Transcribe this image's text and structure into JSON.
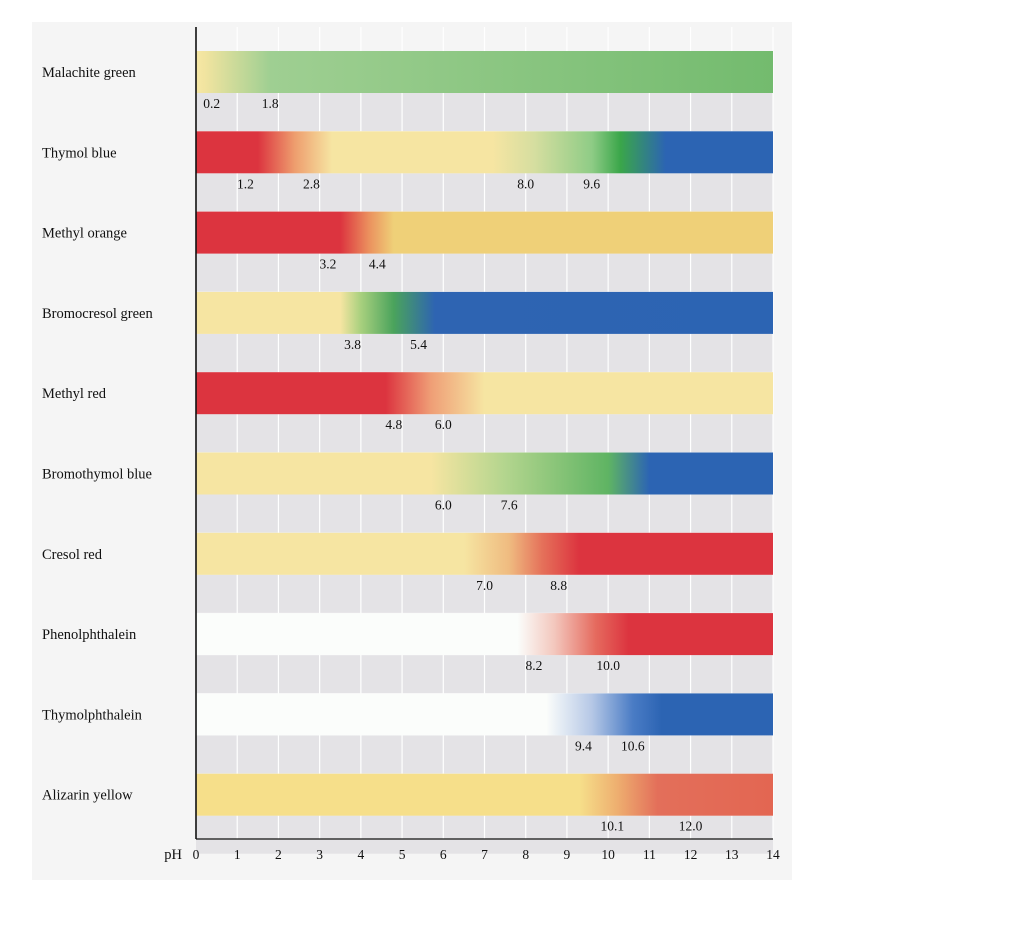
{
  "chart_data": {
    "type": "bar",
    "title": "",
    "xlabel": "pH",
    "ylabel": "",
    "xlim": [
      0,
      14
    ],
    "x_ticks": [
      "0",
      "1",
      "2",
      "3",
      "4",
      "5",
      "6",
      "7",
      "8",
      "9",
      "10",
      "11",
      "12",
      "13",
      "14"
    ],
    "grid": true,
    "indicators": [
      {
        "name": "Malachite green",
        "range_low": 0.2,
        "range_high": 1.8,
        "labels": [
          "0.2",
          "1.8"
        ],
        "stops": [
          {
            "ph": 0,
            "color": "#f5e7a4"
          },
          {
            "ph": 0.2,
            "color": "#f2e4a0"
          },
          {
            "ph": 1.8,
            "color": "#9fcf92"
          },
          {
            "ph": 14,
            "color": "#73bb6e"
          }
        ]
      },
      {
        "name": "Thymol blue",
        "range_low": 1.2,
        "range_high": 2.8,
        "range2_low": 8.0,
        "range2_high": 9.6,
        "labels": [
          "1.2",
          "2.8",
          "8.0",
          "9.6"
        ],
        "stops": [
          {
            "ph": 0,
            "color": "#dc343f"
          },
          {
            "ph": 1.5,
            "color": "#dc343f"
          },
          {
            "ph": 2.4,
            "color": "#ee9e6e"
          },
          {
            "ph": 3.3,
            "color": "#f6e5a2"
          },
          {
            "ph": 7.2,
            "color": "#f6e5a2"
          },
          {
            "ph": 8.2,
            "color": "#d6dea0"
          },
          {
            "ph": 9.6,
            "color": "#8fcc86"
          },
          {
            "ph": 10.3,
            "color": "#3aa64a"
          },
          {
            "ph": 11.4,
            "color": "#2c64b3"
          },
          {
            "ph": 14,
            "color": "#2c64b3"
          }
        ]
      },
      {
        "name": "Methyl orange",
        "range_low": 3.2,
        "range_high": 4.4,
        "labels": [
          "3.2",
          "4.4"
        ],
        "stops": [
          {
            "ph": 0,
            "color": "#dc343f"
          },
          {
            "ph": 3.5,
            "color": "#dc343f"
          },
          {
            "ph": 4.2,
            "color": "#eb915e"
          },
          {
            "ph": 4.8,
            "color": "#efd078"
          },
          {
            "ph": 14,
            "color": "#efd078"
          }
        ]
      },
      {
        "name": "Bromocresol green",
        "range_low": 3.8,
        "range_high": 5.4,
        "labels": [
          "3.8",
          "5.4"
        ],
        "stops": [
          {
            "ph": 0,
            "color": "#f6e5a2"
          },
          {
            "ph": 3.5,
            "color": "#f6e5a2"
          },
          {
            "ph": 4.0,
            "color": "#a8d07e"
          },
          {
            "ph": 4.8,
            "color": "#4aa35c"
          },
          {
            "ph": 5.8,
            "color": "#2e64b2"
          },
          {
            "ph": 14,
            "color": "#2c64b3"
          }
        ]
      },
      {
        "name": "Methyl red",
        "range_low": 4.8,
        "range_high": 6.0,
        "labels": [
          "4.8",
          "6.0"
        ],
        "stops": [
          {
            "ph": 0,
            "color": "#dc343f"
          },
          {
            "ph": 4.6,
            "color": "#dc343f"
          },
          {
            "ph": 5.7,
            "color": "#ef9e76"
          },
          {
            "ph": 7.0,
            "color": "#f6e5a2"
          },
          {
            "ph": 14,
            "color": "#f6e5a2"
          }
        ]
      },
      {
        "name": "Bromothymol blue",
        "range_low": 6.0,
        "range_high": 7.6,
        "labels": [
          "6.0",
          "7.6"
        ],
        "stops": [
          {
            "ph": 0,
            "color": "#f6e5a2"
          },
          {
            "ph": 5.7,
            "color": "#f6e5a2"
          },
          {
            "ph": 7.5,
            "color": "#b3d58e"
          },
          {
            "ph": 10.0,
            "color": "#5fb463"
          },
          {
            "ph": 11.0,
            "color": "#2c64b3"
          },
          {
            "ph": 14,
            "color": "#2c64b3"
          }
        ]
      },
      {
        "name": "Cresol red",
        "range_low": 7.0,
        "range_high": 8.8,
        "labels": [
          "7.0",
          "8.8"
        ],
        "stops": [
          {
            "ph": 0,
            "color": "#f6e5a2"
          },
          {
            "ph": 6.5,
            "color": "#f6e5a2"
          },
          {
            "ph": 7.6,
            "color": "#efbb80"
          },
          {
            "ph": 8.4,
            "color": "#e5715a"
          },
          {
            "ph": 9.3,
            "color": "#dc343f"
          },
          {
            "ph": 14,
            "color": "#dc343f"
          }
        ]
      },
      {
        "name": "Phenolphthalein",
        "range_low": 8.2,
        "range_high": 10.0,
        "labels": [
          "8.2",
          "10.0"
        ],
        "stops": [
          {
            "ph": 0,
            "color": "#fbfdfb"
          },
          {
            "ph": 7.8,
            "color": "#fbfdfb"
          },
          {
            "ph": 8.7,
            "color": "#f3c7bd"
          },
          {
            "ph": 9.7,
            "color": "#e56a5e"
          },
          {
            "ph": 10.5,
            "color": "#dc343f"
          },
          {
            "ph": 14,
            "color": "#dc343f"
          }
        ]
      },
      {
        "name": "Thymolphthalein",
        "range_low": 9.4,
        "range_high": 10.6,
        "labels": [
          "9.4",
          "10.6"
        ],
        "stops": [
          {
            "ph": 0,
            "color": "#fbfdfb"
          },
          {
            "ph": 8.5,
            "color": "#fbfdfb"
          },
          {
            "ph": 9.6,
            "color": "#b6c8e6"
          },
          {
            "ph": 10.6,
            "color": "#4a7cc5"
          },
          {
            "ph": 11.3,
            "color": "#2c64b3"
          },
          {
            "ph": 14,
            "color": "#2c64b3"
          }
        ]
      },
      {
        "name": "Alizarin yellow",
        "range_low": 10.1,
        "range_high": 12.0,
        "labels": [
          "10.1",
          "12.0"
        ],
        "stops": [
          {
            "ph": 0,
            "color": "#f6df8a"
          },
          {
            "ph": 9.3,
            "color": "#f6df8a"
          },
          {
            "ph": 10.2,
            "color": "#eeb070"
          },
          {
            "ph": 11.2,
            "color": "#e36f5a"
          },
          {
            "ph": 14,
            "color": "#e36652"
          }
        ]
      }
    ]
  }
}
